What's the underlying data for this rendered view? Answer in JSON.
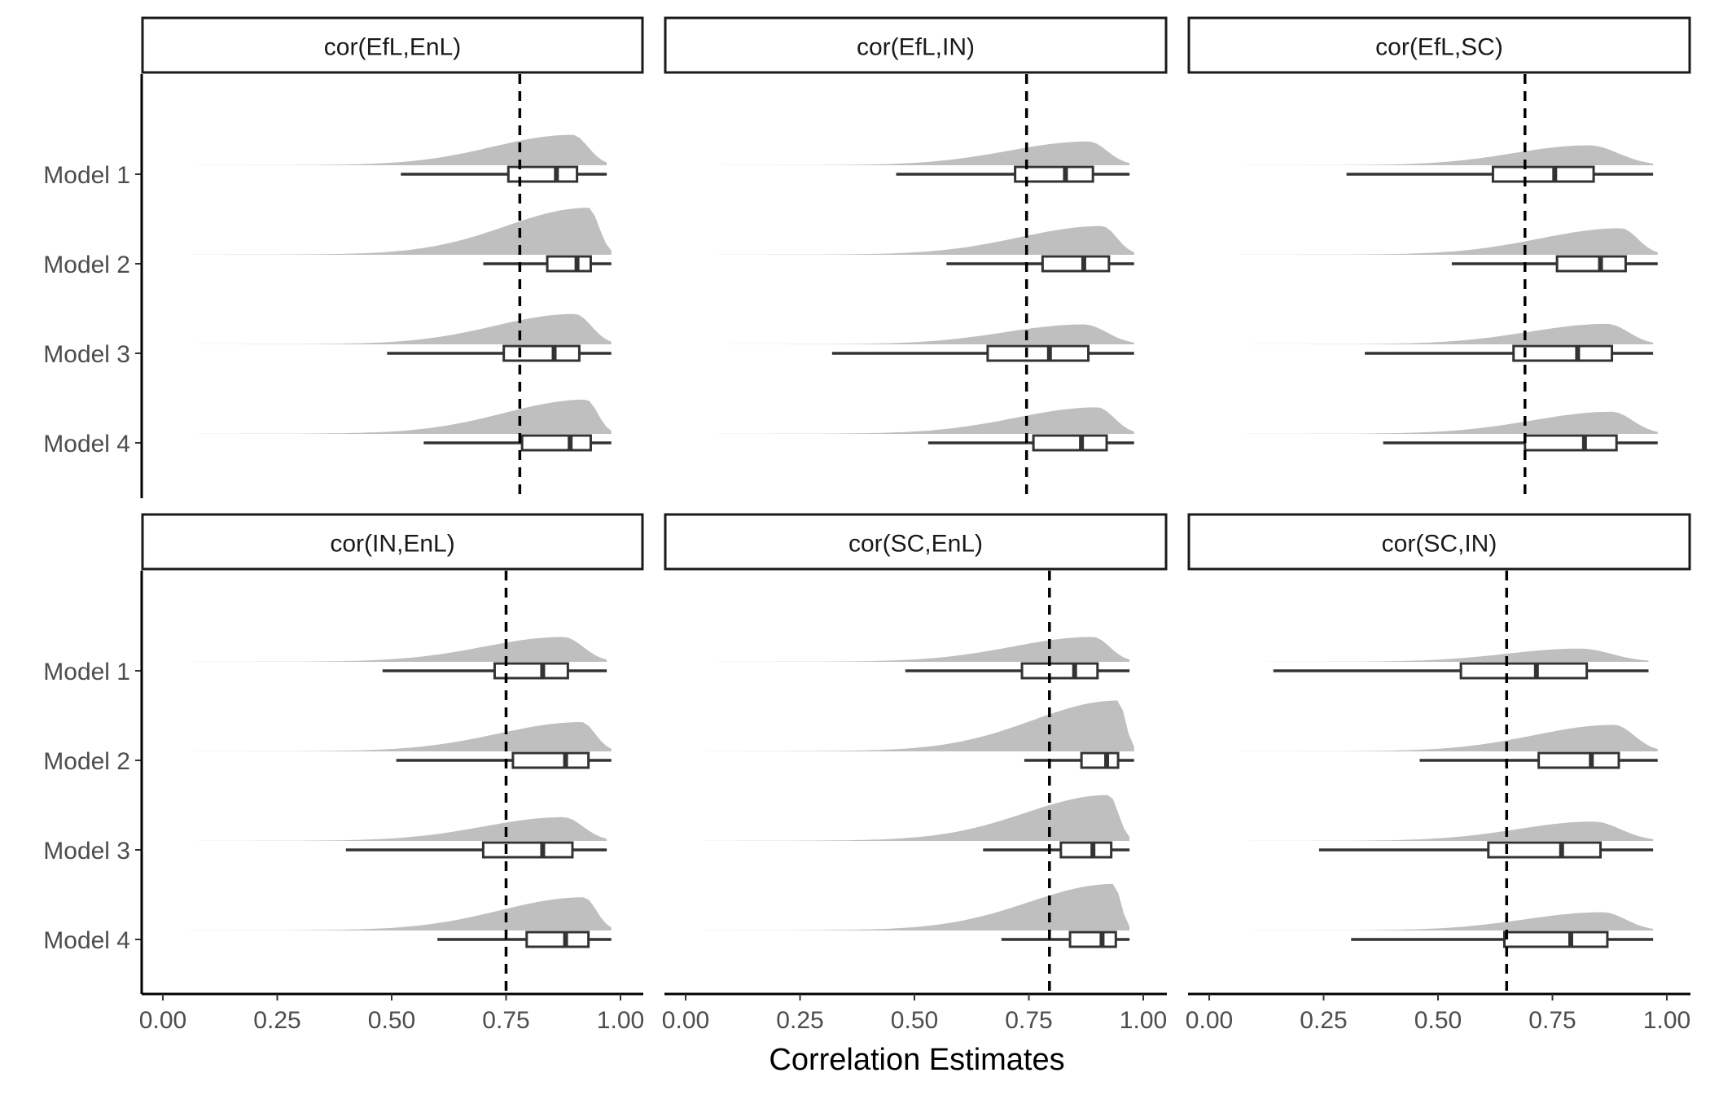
{
  "chart_data": {
    "type": "raincloud",
    "xlabel": "Correlation Estimates",
    "ylabel": "",
    "xlim": [
      0,
      1
    ],
    "xticks": [
      "0.00",
      "0.25",
      "0.50",
      "0.75",
      "1.00"
    ],
    "xtick_values": [
      0,
      0.25,
      0.5,
      0.75,
      1.0
    ],
    "categories": [
      "Model 1",
      "Model 2",
      "Model 3",
      "Model 4"
    ],
    "grid": false,
    "density_color": "#bfbfbf",
    "box_color": "#333333",
    "reference_line_style": "dashed",
    "panels": [
      {
        "title": "cor(EfL,EnL)",
        "reference": 0.78,
        "series": [
          {
            "model": "Model 1",
            "whisker_low": 0.52,
            "q1": 0.755,
            "median": 0.86,
            "q3": 0.905,
            "whisker_high": 0.97,
            "density_start": 0.02,
            "density_mode": 0.895,
            "density_end": 0.97,
            "density_peak": 0.55
          },
          {
            "model": "Model 2",
            "whisker_low": 0.7,
            "q1": 0.84,
            "median": 0.905,
            "q3": 0.935,
            "whisker_high": 0.98,
            "density_start": 0.02,
            "density_mode": 0.93,
            "density_end": 0.98,
            "density_peak": 0.85
          },
          {
            "model": "Model 3",
            "whisker_low": 0.49,
            "q1": 0.745,
            "median": 0.855,
            "q3": 0.91,
            "whisker_high": 0.98,
            "density_start": 0.02,
            "density_mode": 0.9,
            "density_end": 0.98,
            "density_peak": 0.55
          },
          {
            "model": "Model 4",
            "whisker_low": 0.57,
            "q1": 0.785,
            "median": 0.89,
            "q3": 0.935,
            "whisker_high": 0.98,
            "density_start": 0.02,
            "density_mode": 0.925,
            "density_end": 0.98,
            "density_peak": 0.62
          }
        ]
      },
      {
        "title": "cor(EfL,IN)",
        "reference": 0.745,
        "series": [
          {
            "model": "Model 1",
            "whisker_low": 0.46,
            "q1": 0.72,
            "median": 0.83,
            "q3": 0.89,
            "whisker_high": 0.97,
            "density_start": 0.0,
            "density_mode": 0.88,
            "density_end": 0.97,
            "density_peak": 0.43
          },
          {
            "model": "Model 2",
            "whisker_low": 0.57,
            "q1": 0.78,
            "median": 0.87,
            "q3": 0.925,
            "whisker_high": 0.98,
            "density_start": 0.0,
            "density_mode": 0.91,
            "density_end": 0.98,
            "density_peak": 0.52
          },
          {
            "model": "Model 3",
            "whisker_low": 0.32,
            "q1": 0.66,
            "median": 0.795,
            "q3": 0.88,
            "whisker_high": 0.98,
            "density_start": 0.0,
            "density_mode": 0.87,
            "density_end": 0.98,
            "density_peak": 0.36
          },
          {
            "model": "Model 4",
            "whisker_low": 0.53,
            "q1": 0.76,
            "median": 0.865,
            "q3": 0.92,
            "whisker_high": 0.98,
            "density_start": 0.0,
            "density_mode": 0.9,
            "density_end": 0.98,
            "density_peak": 0.48
          }
        ]
      },
      {
        "title": "cor(EfL,SC)",
        "reference": 0.69,
        "series": [
          {
            "model": "Model 1",
            "whisker_low": 0.3,
            "q1": 0.62,
            "median": 0.755,
            "q3": 0.84,
            "whisker_high": 0.97,
            "density_start": 0.0,
            "density_mode": 0.83,
            "density_end": 0.97,
            "density_peak": 0.36
          },
          {
            "model": "Model 2",
            "whisker_low": 0.53,
            "q1": 0.76,
            "median": 0.855,
            "q3": 0.91,
            "whisker_high": 0.98,
            "density_start": 0.0,
            "density_mode": 0.9,
            "density_end": 0.98,
            "density_peak": 0.48
          },
          {
            "model": "Model 3",
            "whisker_low": 0.34,
            "q1": 0.665,
            "median": 0.805,
            "q3": 0.88,
            "whisker_high": 0.97,
            "density_start": 0.0,
            "density_mode": 0.87,
            "density_end": 0.97,
            "density_peak": 0.37
          },
          {
            "model": "Model 4",
            "whisker_low": 0.38,
            "q1": 0.69,
            "median": 0.82,
            "q3": 0.89,
            "whisker_high": 0.98,
            "density_start": 0.0,
            "density_mode": 0.88,
            "density_end": 0.98,
            "density_peak": 0.4
          }
        ]
      },
      {
        "title": "cor(IN,EnL)",
        "reference": 0.75,
        "series": [
          {
            "model": "Model 1",
            "whisker_low": 0.48,
            "q1": 0.725,
            "median": 0.83,
            "q3": 0.885,
            "whisker_high": 0.97,
            "density_start": 0.0,
            "density_mode": 0.875,
            "density_end": 0.97,
            "density_peak": 0.45
          },
          {
            "model": "Model 2",
            "whisker_low": 0.51,
            "q1": 0.765,
            "median": 0.88,
            "q3": 0.93,
            "whisker_high": 0.98,
            "density_start": 0.0,
            "density_mode": 0.915,
            "density_end": 0.98,
            "density_peak": 0.53
          },
          {
            "model": "Model 3",
            "whisker_low": 0.4,
            "q1": 0.7,
            "median": 0.83,
            "q3": 0.895,
            "whisker_high": 0.97,
            "density_start": 0.0,
            "density_mode": 0.875,
            "density_end": 0.97,
            "density_peak": 0.43
          },
          {
            "model": "Model 4",
            "whisker_low": 0.6,
            "q1": 0.795,
            "median": 0.88,
            "q3": 0.93,
            "whisker_high": 0.98,
            "density_start": 0.0,
            "density_mode": 0.92,
            "density_end": 0.98,
            "density_peak": 0.6
          }
        ]
      },
      {
        "title": "cor(SC,EnL)",
        "reference": 0.795,
        "series": [
          {
            "model": "Model 1",
            "whisker_low": 0.48,
            "q1": 0.735,
            "median": 0.85,
            "q3": 0.9,
            "whisker_high": 0.97,
            "density_start": 0.0,
            "density_mode": 0.89,
            "density_end": 0.97,
            "density_peak": 0.45
          },
          {
            "model": "Model 2",
            "whisker_low": 0.74,
            "q1": 0.865,
            "median": 0.92,
            "q3": 0.945,
            "whisker_high": 0.98,
            "density_start": 0.0,
            "density_mode": 0.945,
            "density_end": 0.98,
            "density_peak": 0.92
          },
          {
            "model": "Model 3",
            "whisker_low": 0.65,
            "q1": 0.82,
            "median": 0.89,
            "q3": 0.93,
            "whisker_high": 0.97,
            "density_start": 0.0,
            "density_mode": 0.925,
            "density_end": 0.97,
            "density_peak": 0.83
          },
          {
            "model": "Model 4",
            "whisker_low": 0.69,
            "q1": 0.84,
            "median": 0.91,
            "q3": 0.94,
            "whisker_high": 0.97,
            "density_start": 0.0,
            "density_mode": 0.935,
            "density_end": 0.97,
            "density_peak": 0.84
          }
        ]
      },
      {
        "title": "cor(SC,IN)",
        "reference": 0.65,
        "series": [
          {
            "model": "Model 1",
            "whisker_low": 0.14,
            "q1": 0.55,
            "median": 0.715,
            "q3": 0.825,
            "whisker_high": 0.96,
            "density_start": 0.0,
            "density_mode": 0.81,
            "density_end": 0.96,
            "density_peak": 0.24
          },
          {
            "model": "Model 2",
            "whisker_low": 0.46,
            "q1": 0.72,
            "median": 0.835,
            "q3": 0.895,
            "whisker_high": 0.98,
            "density_start": 0.0,
            "density_mode": 0.885,
            "density_end": 0.98,
            "density_peak": 0.48
          },
          {
            "model": "Model 3",
            "whisker_low": 0.24,
            "q1": 0.61,
            "median": 0.77,
            "q3": 0.855,
            "whisker_high": 0.97,
            "density_start": 0.0,
            "density_mode": 0.84,
            "density_end": 0.97,
            "density_peak": 0.35
          },
          {
            "model": "Model 4",
            "whisker_low": 0.31,
            "q1": 0.645,
            "median": 0.79,
            "q3": 0.87,
            "whisker_high": 0.97,
            "density_start": 0.0,
            "density_mode": 0.86,
            "density_end": 0.97,
            "density_peak": 0.33
          }
        ]
      }
    ]
  }
}
